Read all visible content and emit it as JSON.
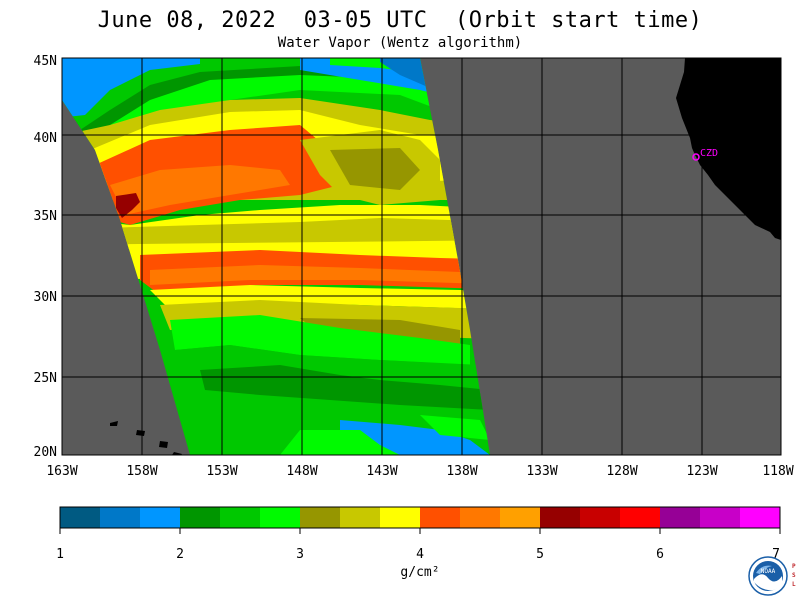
{
  "header": {
    "title": "June 08, 2022  03-05 UTC  (Orbit start time)",
    "subtitle": "Water Vapor (Wentz algorithm)"
  },
  "map": {
    "lat_labels": [
      "45N",
      "40N",
      "35N",
      "30N",
      "25N",
      "20N"
    ],
    "lon_labels": [
      "163W",
      "158W",
      "153W",
      "148W",
      "143W",
      "138W",
      "133W",
      "128W",
      "123W",
      "118W"
    ],
    "station_label": "CZD",
    "colors": {
      "no_data": "#5a5a5a",
      "land": "#000000",
      "station": "#ff00ff",
      "grid": "#000000"
    }
  },
  "colorbar": {
    "colors": [
      "#005a82",
      "#0078c8",
      "#0096ff",
      "#009600",
      "#00c800",
      "#00fa00",
      "#969600",
      "#c8c800",
      "#ffff00",
      "#ff5000",
      "#ff7800",
      "#ffa000",
      "#960000",
      "#c80000",
      "#ff0000",
      "#960096",
      "#c800c8",
      "#ff00ff"
    ],
    "tick_labels": [
      "1",
      "2",
      "3",
      "4",
      "5",
      "6",
      "7"
    ],
    "unit": "g/cm²"
  },
  "logo": {
    "name": "NOAA",
    "side_text": "PSL"
  }
}
